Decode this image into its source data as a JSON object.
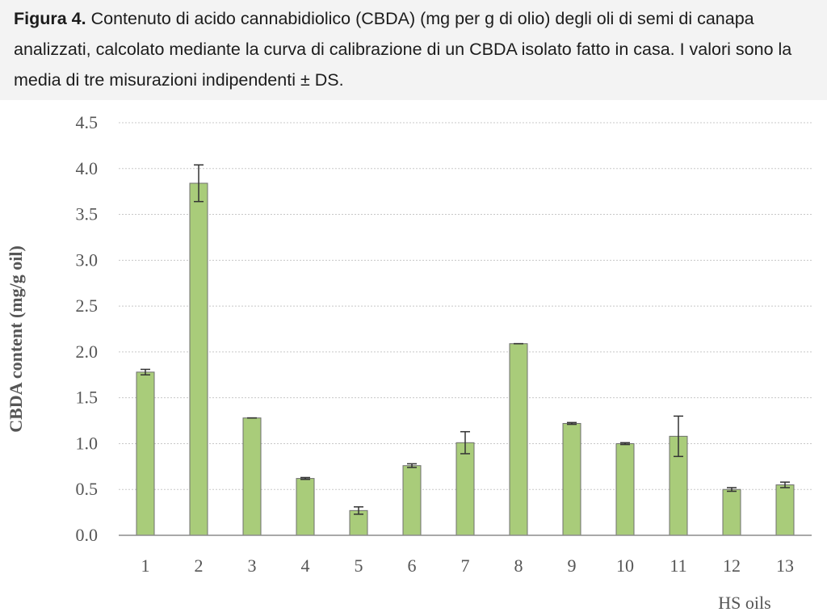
{
  "caption": {
    "label": "Figura 4.",
    "text": " Contenuto di acido cannabidiolico (CBDA) (mg per g di olio) degli oli di semi di canapa analizzati, calcolato mediante la curva di calibrazione di un CBDA isolato fatto in casa. I valori sono la media di tre misurazioni indipendenti ± DS."
  },
  "chart_data": {
    "type": "bar",
    "xlabel": "HS oils",
    "ylabel": "CBDA content (mg/g oil)",
    "ylim": [
      0,
      4.5
    ],
    "yticks": [
      "0.0",
      "0.5",
      "1.0",
      "1.5",
      "2.0",
      "2.5",
      "3.0",
      "3.5",
      "4.0",
      "4.5"
    ],
    "grid": true,
    "categories": [
      "1",
      "2",
      "3",
      "4",
      "5",
      "6",
      "7",
      "8",
      "9",
      "10",
      "11",
      "12",
      "13"
    ],
    "values": [
      1.78,
      3.84,
      1.28,
      0.62,
      0.27,
      0.76,
      1.01,
      2.09,
      1.22,
      1.0,
      1.08,
      0.5,
      0.55
    ],
    "errors": [
      0.03,
      0.2,
      0.0,
      0.01,
      0.04,
      0.02,
      0.12,
      0.0,
      0.01,
      0.01,
      0.22,
      0.02,
      0.03
    ],
    "colors": {
      "bar": "#a9cc7a",
      "bar_edge": "#6f6f6f",
      "error": "#333333",
      "grid": "#c8c8c8",
      "axis": "#8c8c8c",
      "text": "#555555"
    }
  }
}
